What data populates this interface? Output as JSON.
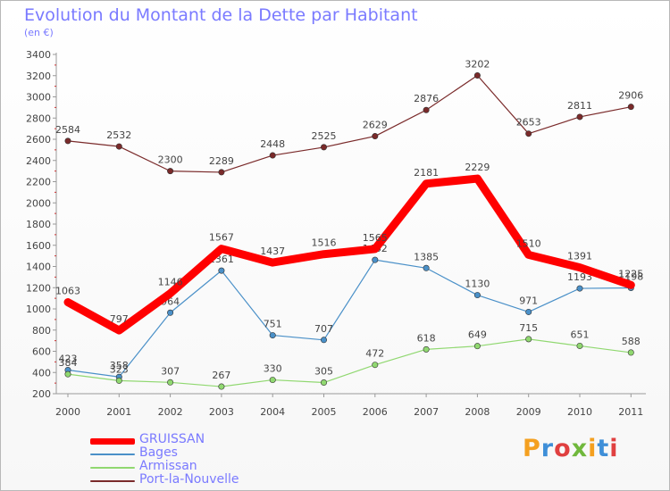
{
  "title": "Evolution du Montant de la Dette par Habitant",
  "unit": "(en €)",
  "logo": {
    "text": "Proxiti",
    "colors": [
      "#f4a020",
      "#3f8fd8",
      "#e04040",
      "#70b83c",
      "#f4a020",
      "#3f8fd8",
      "#e04040"
    ]
  },
  "chart_data": {
    "type": "line",
    "title": "Evolution du Montant de la Dette par Habitant",
    "ylabel": "(en €)",
    "xlabel": "",
    "x": [
      "2000",
      "2001",
      "2002",
      "2003",
      "2004",
      "2005",
      "2006",
      "2007",
      "2008",
      "2009",
      "2010",
      "2011"
    ],
    "ylim": [
      200,
      3400
    ],
    "yticks": [
      200,
      400,
      600,
      800,
      1000,
      1200,
      1400,
      1600,
      1800,
      2000,
      2200,
      2400,
      2600,
      2800,
      3000,
      3200,
      3400
    ],
    "grid": false,
    "legend_position": "bottom-left",
    "series": [
      {
        "name": "GRUISSAN",
        "color": "#ff0000",
        "values": [
          1063,
          797,
          1146,
          1567,
          1437,
          1516,
          1565,
          2181,
          2229,
          1510,
          1391,
          1225
        ]
      },
      {
        "name": "Bages",
        "color": "#4a90c8",
        "values": [
          423,
          358,
          964,
          1361,
          751,
          707,
          1462,
          1385,
          1130,
          971,
          1193,
          1198
        ]
      },
      {
        "name": "Armissan",
        "color": "#90d870",
        "values": [
          384,
          323,
          307,
          267,
          330,
          305,
          472,
          618,
          649,
          715,
          651,
          588
        ]
      },
      {
        "name": "Port-la-Nouvelle",
        "color": "#7a2a2a",
        "values": [
          2584,
          2532,
          2300,
          2289,
          2448,
          2525,
          2629,
          2876,
          3202,
          2653,
          2811,
          2906
        ]
      }
    ]
  }
}
